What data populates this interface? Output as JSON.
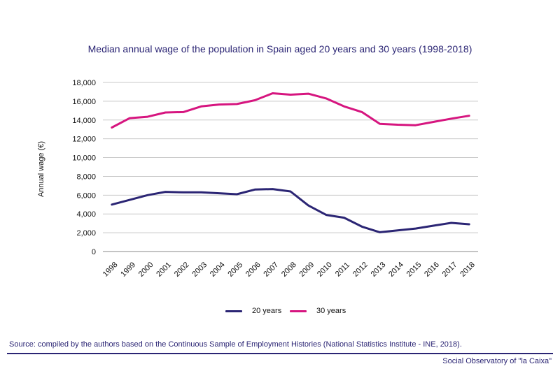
{
  "chart_data": {
    "type": "line",
    "title": "Median annual wage of the population in Spain aged 20 years and 30 years (1998-2018)",
    "xlabel": "",
    "ylabel": "Annual wage (€)",
    "categories": [
      "1998",
      "1999",
      "2000",
      "2001",
      "2002",
      "2003",
      "2004",
      "2005",
      "2006",
      "2007",
      "2008",
      "2009",
      "2010",
      "2011",
      "2012",
      "2013",
      "2014",
      "2015",
      "2016",
      "2017",
      "2018"
    ],
    "ylim": [
      0,
      18000
    ],
    "yticks": [
      0,
      2000,
      4000,
      6000,
      8000,
      10000,
      12000,
      14000,
      16000,
      18000
    ],
    "ytick_labels": [
      "0",
      "2,000",
      "4,000",
      "6,000",
      "8,000",
      "10,000",
      "12,000",
      "14,000",
      "16,000",
      "18,000"
    ],
    "grid": "horizontal",
    "legend_position": "bottom",
    "series": [
      {
        "name": "20 years",
        "color": "#2b2574",
        "values": [
          5000,
          5500,
          6000,
          6350,
          6300,
          6300,
          6200,
          6100,
          6600,
          6650,
          6400,
          4900,
          3900,
          3600,
          2650,
          2050,
          2250,
          2450,
          2750,
          3050,
          2900
        ]
      },
      {
        "name": "30 years",
        "color": "#d6157f",
        "values": [
          13200,
          14200,
          14350,
          14800,
          14850,
          15450,
          15650,
          15700,
          16100,
          16850,
          16700,
          16800,
          16300,
          15450,
          14850,
          13600,
          13500,
          13450,
          13800,
          14150,
          14450
        ]
      }
    ]
  },
  "source_text": "Source: compiled by the authors based on the Continuous Sample of Employment Histories (National Statistics Institute - INE, 2018).",
  "footer_text": "Social Observatory of \"la Caixa\""
}
